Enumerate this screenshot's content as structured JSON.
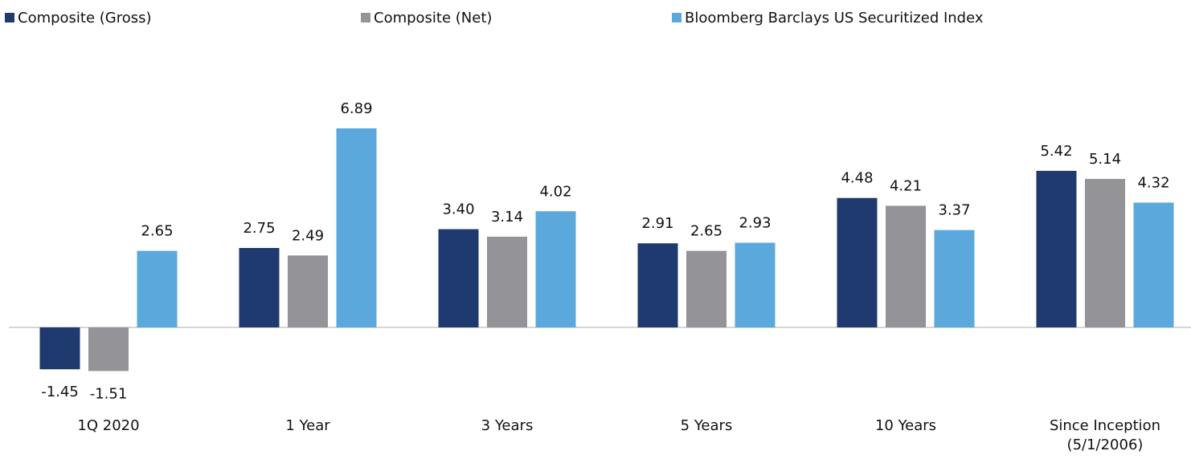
{
  "chart_data": {
    "type": "bar",
    "categories": [
      "1Q 2020",
      "1 Year",
      "3 Years",
      "5 Years",
      "10 Years",
      "Since Inception\n(5/1/2006)"
    ],
    "series": [
      {
        "name": "Composite (Gross)",
        "color": "#1f3a6e",
        "values": [
          -1.45,
          2.75,
          3.4,
          2.91,
          4.48,
          5.42
        ],
        "value_labels": [
          "-1.45",
          "2.75",
          "3.40",
          "2.91",
          "4.48",
          "5.42"
        ]
      },
      {
        "name": "Composite (Net)",
        "color": "#939398",
        "values": [
          -1.51,
          2.49,
          3.14,
          2.65,
          4.21,
          5.14
        ],
        "value_labels": [
          "-1.51",
          "2.49",
          "3.14",
          "2.65",
          "4.21",
          "5.14"
        ]
      },
      {
        "name": "Bloomberg Barclays US Securitized Index",
        "color": "#5ba8dc",
        "values": [
          2.65,
          6.89,
          4.02,
          2.93,
          3.37,
          4.32
        ],
        "value_labels": [
          "2.65",
          "6.89",
          "4.02",
          "2.93",
          "3.37",
          "4.32"
        ]
      }
    ],
    "ylim": [
      -2,
      8.5
    ],
    "legend": "top"
  }
}
